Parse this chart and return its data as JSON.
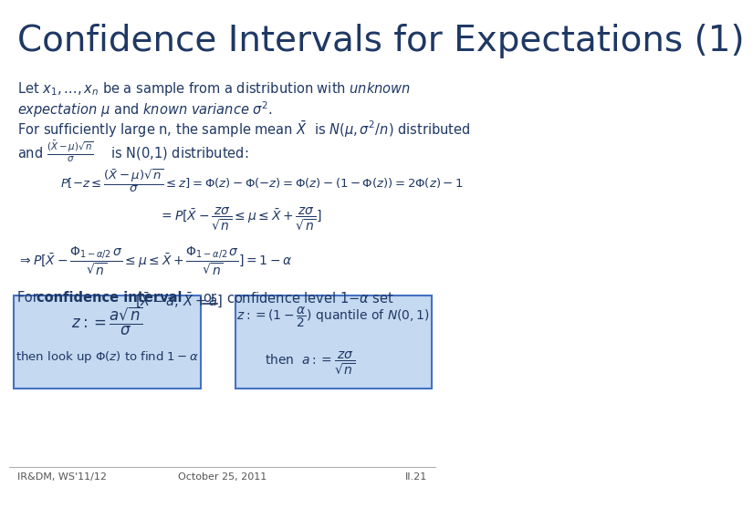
{
  "title": "Confidence Intervals for Expectations (1)",
  "title_color": "#1F3864",
  "title_fontsize": 28,
  "bg_color": "#FFFFFF",
  "text_color": "#1F3864",
  "box_bg_color": "#C5D9F1",
  "box_edge_color": "#4472C4",
  "footer_left": "IR&DM, WS'11/12",
  "footer_center": "October 25, 2011",
  "footer_right": "II.21"
}
